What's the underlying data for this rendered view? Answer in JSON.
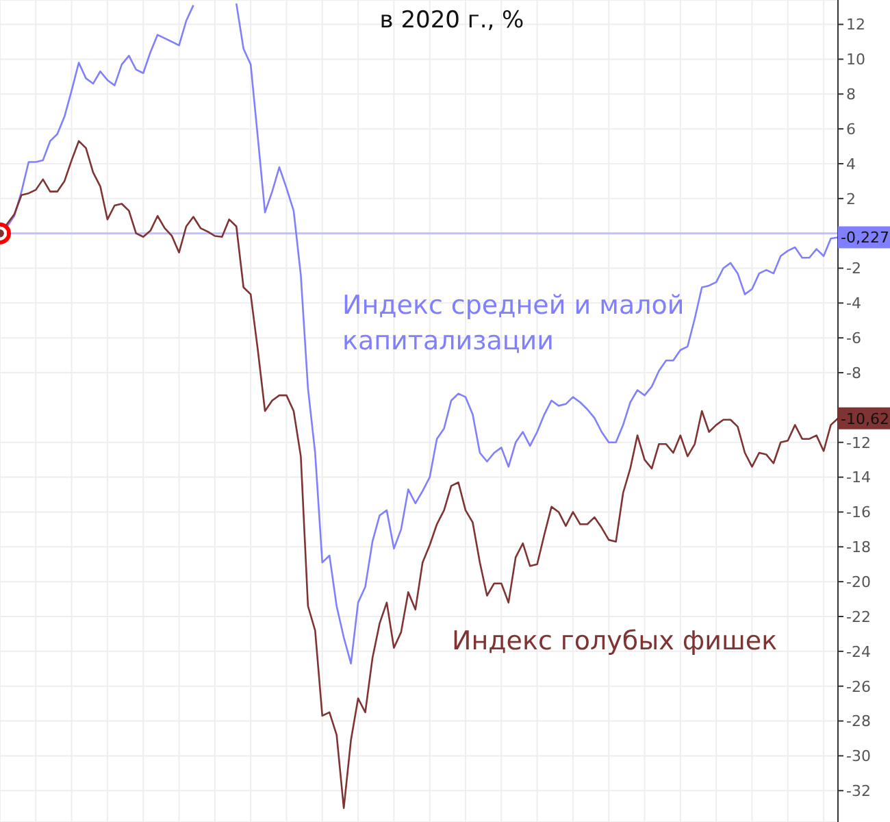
{
  "chart_data": {
    "type": "line",
    "title": "в 2020 г., %",
    "categories": [
      null,
      null,
      null,
      null,
      null,
      null,
      null,
      null,
      null,
      null,
      null,
      null,
      null,
      null,
      null,
      null,
      null,
      null,
      null,
      null,
      null,
      null,
      null,
      null,
      null,
      null,
      null,
      null,
      null,
      null,
      null,
      null,
      null,
      null,
      null,
      null,
      null,
      null,
      null,
      null,
      null,
      null,
      null,
      null,
      null,
      null,
      null,
      null,
      null,
      null,
      null,
      null,
      null,
      null,
      null,
      null,
      null,
      null,
      null,
      null,
      null,
      null,
      null,
      null,
      null,
      null,
      null,
      null,
      null,
      null,
      null,
      null,
      null,
      null,
      null,
      null,
      null,
      null,
      null,
      null,
      null,
      null,
      null,
      null,
      null,
      null,
      null,
      null,
      null,
      null,
      null,
      null,
      null,
      null,
      null,
      null,
      null,
      null,
      null,
      null,
      null,
      null,
      null,
      null,
      null,
      null,
      null,
      null,
      null,
      null,
      null,
      null,
      null,
      null,
      null,
      null,
      null,
      null
    ],
    "series": [
      {
        "name": "Индекс средней и малой капитализации",
        "color": "#8080ff",
        "values": [
          0,
          0.4,
          1.0,
          2.4,
          4.1,
          4.1,
          4.2,
          5.3,
          5.7,
          6.7,
          8.2,
          9.8,
          8.9,
          8.6,
          9.3,
          8.8,
          8.5,
          9.7,
          10.2,
          9.4,
          9.2,
          10.4,
          11.4,
          11.2,
          11.0,
          10.8,
          12.2,
          13.1,
          null,
          null,
          null,
          null,
          null,
          13.2,
          10.6,
          9.7,
          5.5,
          1.2,
          2.4,
          3.8,
          2.6,
          1.3,
          -2.4,
          -8.9,
          -12.6,
          -18.9,
          -18.5,
          -21.4,
          -23.2,
          -24.7,
          -21.2,
          -20.3,
          -17.7,
          -16.2,
          -15.9,
          -18.1,
          -17.0,
          -14.7,
          -15.5,
          -14.8,
          -14.0,
          -11.8,
          -11.2,
          -9.6,
          -9.2,
          -9.4,
          -10.4,
          -12.6,
          -13.1,
          -12.6,
          -12.3,
          -13.4,
          -12.0,
          -11.4,
          -12.2,
          -11.4,
          -10.4,
          -9.6,
          -9.9,
          -9.8,
          -9.4,
          -9.7,
          -10.1,
          -10.6,
          -11.4,
          -12.0,
          -12.0,
          -11.0,
          -9.7,
          -9.0,
          -9.3,
          -8.8,
          -7.9,
          -7.3,
          -7.3,
          -6.7,
          -6.5,
          -4.9,
          -3.1,
          -3.0,
          -2.8,
          -2.0,
          -1.7,
          -2.3,
          -3.5,
          -3.2,
          -2.3,
          -2.1,
          -2.3,
          -1.3,
          -1.0,
          -0.8,
          -1.4,
          -1.4,
          -0.9,
          -1.3,
          -0.3,
          -0.227
        ],
        "value_labels": [
          null,
          null,
          null,
          null,
          null,
          null,
          null,
          null,
          null,
          null,
          null,
          null,
          null,
          null,
          null,
          null,
          null,
          null,
          null,
          null,
          null,
          null,
          null,
          null,
          null,
          null,
          null,
          null,
          null,
          null,
          null,
          null,
          null,
          null,
          null,
          null,
          null,
          null,
          null,
          null,
          null,
          null,
          null,
          null,
          null,
          null,
          null,
          null,
          null,
          null,
          null,
          null,
          null,
          null,
          null,
          null,
          null,
          null,
          null,
          null,
          null,
          null,
          null,
          null,
          null,
          null,
          null,
          null,
          null,
          null,
          null,
          null,
          null,
          null,
          null,
          null,
          null,
          null,
          null,
          null,
          null,
          null,
          null,
          null,
          null,
          null,
          null,
          null,
          null,
          null,
          null,
          null,
          null,
          null,
          null,
          null,
          null,
          null,
          null,
          null,
          null,
          null,
          null,
          null,
          null,
          null,
          null,
          null,
          null,
          null,
          null,
          null,
          null,
          null,
          null,
          null,
          null,
          "-0,227"
        ]
      },
      {
        "name": "Индекс голубых фишек",
        "color": "#7f3333",
        "values": [
          0,
          0.55,
          1.1,
          2.2,
          2.3,
          2.5,
          3.1,
          2.4,
          2.4,
          3.0,
          4.2,
          5.3,
          4.9,
          3.5,
          2.7,
          0.8,
          1.6,
          1.7,
          1.3,
          0,
          -0.2,
          0.15,
          1.0,
          0.3,
          -0.15,
          -1.1,
          0.4,
          0.95,
          0.3,
          0.1,
          -0.15,
          -0.2,
          0.8,
          0.4,
          -3.1,
          -3.5,
          -6.7,
          -10.2,
          -9.6,
          -9.3,
          -9.3,
          -10.2,
          -12.8,
          -21.4,
          -22.8,
          -27.7,
          -27.5,
          -28.8,
          -33.0,
          -29.1,
          -26.7,
          -27.5,
          -24.4,
          -22.4,
          -21.2,
          -23.8,
          -22.9,
          -20.6,
          -21.6,
          -18.9,
          -17.9,
          -16.7,
          -15.9,
          -14.5,
          -14.3,
          -15.9,
          -16.6,
          -18.9,
          -20.8,
          -20.1,
          -20.1,
          -21.2,
          -18.6,
          -17.8,
          -19.1,
          -19.0,
          -17.3,
          -15.7,
          -16.0,
          -16.8,
          -16.0,
          -16.7,
          -16.7,
          -16.3,
          -16.9,
          -17.6,
          -17.7,
          -14.9,
          -13.5,
          -11.6,
          -13.0,
          -13.5,
          -12.1,
          -12.1,
          -12.6,
          -11.6,
          -12.8,
          -12.1,
          -10.2,
          -11.4,
          -11.0,
          -10.7,
          -10.7,
          -11.1,
          -12.6,
          -13.4,
          -12.6,
          -12.7,
          -13.2,
          -12.0,
          -11.9,
          -11.0,
          -11.8,
          -11.8,
          -11.6,
          -12.5,
          -11.0,
          -10.62
        ],
        "value_labels": [
          null,
          null,
          null,
          null,
          null,
          null,
          null,
          null,
          null,
          null,
          null,
          null,
          null,
          null,
          null,
          null,
          null,
          null,
          null,
          null,
          null,
          null,
          null,
          null,
          null,
          null,
          null,
          null,
          null,
          null,
          null,
          null,
          null,
          null,
          null,
          null,
          null,
          null,
          null,
          null,
          null,
          null,
          null,
          null,
          null,
          null,
          null,
          null,
          null,
          null,
          null,
          null,
          null,
          null,
          null,
          null,
          null,
          null,
          null,
          null,
          null,
          null,
          null,
          null,
          null,
          null,
          null,
          null,
          null,
          null,
          null,
          null,
          null,
          null,
          null,
          null,
          null,
          null,
          null,
          null,
          null,
          null,
          null,
          null,
          null,
          null,
          null,
          null,
          null,
          null,
          null,
          null,
          null,
          null,
          null,
          null,
          null,
          null,
          null,
          null,
          null,
          null,
          null,
          null,
          null,
          null,
          null,
          null,
          null,
          null,
          null,
          null,
          null,
          null,
          null,
          null,
          null,
          "-10,62"
        ]
      },
      {
        "type": "scatter",
        "marker": "circle",
        "color": "#ff0000",
        "values": [
          0,
          null,
          null,
          null,
          null,
          null,
          null,
          null,
          null,
          null,
          null,
          null,
          null,
          null,
          null,
          null,
          null,
          null,
          null,
          null,
          null,
          null,
          null,
          null,
          null,
          null,
          null,
          null,
          null,
          null,
          null,
          null,
          null,
          null,
          null,
          null,
          null,
          null,
          null,
          null,
          null,
          null,
          null,
          null,
          null,
          null,
          null,
          null,
          null,
          null,
          null,
          null,
          null,
          null,
          null,
          null,
          null,
          null,
          null,
          null,
          null,
          null,
          null,
          null,
          null,
          null,
          null,
          null,
          null,
          null,
          null,
          null,
          null,
          null,
          null,
          null,
          null,
          null,
          null,
          null,
          null,
          null,
          null,
          null,
          null,
          null,
          null,
          null,
          null,
          null,
          null,
          null,
          null,
          null,
          null,
          null,
          null,
          null,
          null,
          null,
          null,
          null,
          null,
          null,
          null,
          null,
          null,
          null,
          null,
          null,
          null,
          null,
          null,
          null,
          null,
          null,
          null,
          null
        ]
      }
    ],
    "ylim": [
      -33.8,
      13.4
    ],
    "yticks": [
      -32,
      -30,
      -28,
      -26,
      -24,
      -22,
      -20,
      -18,
      -16,
      -14,
      -12,
      -8,
      -6,
      -4,
      -2,
      2,
      4,
      6,
      8,
      10,
      12
    ],
    "ref_lines": [
      {
        "axis": "y",
        "value": 0,
        "color": "#c0c0ff"
      }
    ],
    "grid": true,
    "tick_labels": "y",
    "line_style": "solid"
  }
}
